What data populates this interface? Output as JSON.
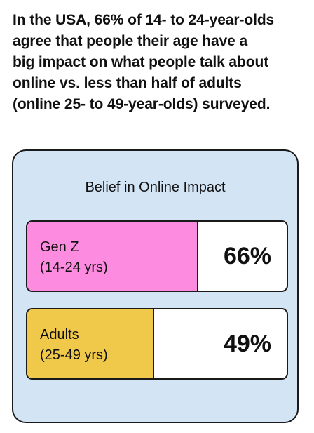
{
  "headline": {
    "lines": [
      "In the USA, 66% of 14- to 24-year-olds",
      "agree that people their age have a",
      "big impact on what people talk about",
      "online vs. less than half of adults",
      "(online 25- to 49-year-olds) surveyed."
    ]
  },
  "chart_data": {
    "type": "bar",
    "title": "Belief in Online Impact",
    "orientation": "horizontal",
    "unit": "%",
    "ylim": [
      0,
      100
    ],
    "categories": [
      "Gen Z (14-24 yrs)",
      "Adults (25-49 yrs)"
    ],
    "bars": [
      {
        "name": "Gen Z",
        "sub": "(14-24 yrs)",
        "value": 66,
        "value_label": "66%",
        "color": "#fd8be0"
      },
      {
        "name": "Adults",
        "sub": "(25-49 yrs)",
        "value": 49,
        "value_label": "49%",
        "color": "#f0c84a"
      }
    ]
  },
  "colors": {
    "panel_background": "#d3e4f5",
    "border": "#1a1a1a"
  }
}
